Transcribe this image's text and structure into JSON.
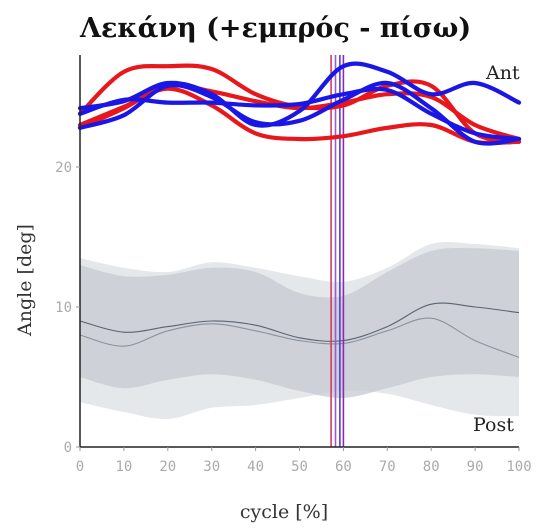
{
  "chart_data": {
    "type": "line",
    "title": "Λεκάνη (+εμπρός - πίσω)",
    "xlabel": "cycle [%]",
    "ylabel": "Angle [deg]",
    "xlim": [
      0,
      100
    ],
    "ylim": [
      0,
      28
    ],
    "x_ticks": [
      0,
      10,
      20,
      30,
      40,
      50,
      60,
      70,
      80,
      90,
      100
    ],
    "y_ticks": [
      0,
      10,
      20
    ],
    "x_tick_labels": [
      "0",
      "10",
      "20",
      "30",
      "40",
      "50",
      "60",
      "70",
      "80",
      "90",
      "100"
    ],
    "y_tick_labels": [
      "0",
      "10",
      "20"
    ],
    "annotations": {
      "top_right": "Ant",
      "bottom_right": "Post"
    },
    "x": [
      0,
      10,
      20,
      30,
      40,
      50,
      60,
      70,
      80,
      90,
      100
    ],
    "bands": [
      {
        "color": "#e2e5e8",
        "upper": [
          13.5,
          12.8,
          12.5,
          13.2,
          12.8,
          12.2,
          11.8,
          12.8,
          14.5,
          14.5,
          14.2
        ],
        "lower": [
          3.2,
          2.5,
          2.0,
          2.8,
          3.0,
          3.5,
          4.0,
          3.8,
          3.0,
          2.3,
          2.2
        ]
      },
      {
        "color": "#c5cad0",
        "upper": [
          13.0,
          12.2,
          12.3,
          12.8,
          12.5,
          11.0,
          10.8,
          12.5,
          14.0,
          14.2,
          14.0
        ],
        "lower": [
          5.0,
          4.2,
          4.8,
          5.2,
          4.8,
          4.0,
          3.5,
          4.2,
          5.0,
          5.2,
          5.0
        ]
      }
    ],
    "mean_lines": [
      {
        "color": "#5a6470",
        "values": [
          9.0,
          8.2,
          8.6,
          9.0,
          8.7,
          7.8,
          7.6,
          8.6,
          10.2,
          10.0,
          9.6
        ]
      },
      {
        "color": "#8a939c",
        "values": [
          8.0,
          7.2,
          8.3,
          8.8,
          8.3,
          7.6,
          7.4,
          8.3,
          9.2,
          7.6,
          6.4
        ]
      }
    ],
    "series": [
      {
        "color": "#e8171c",
        "values": [
          23.8,
          26.8,
          27.2,
          27.0,
          25.2,
          24.3,
          24.4,
          25.8,
          25.8,
          22.4,
          21.8
        ]
      },
      {
        "color": "#e8171c",
        "values": [
          23.0,
          24.3,
          25.6,
          24.4,
          22.4,
          22.0,
          22.2,
          22.8,
          23.0,
          21.8,
          21.8
        ]
      },
      {
        "color": "#e8171c",
        "values": [
          22.8,
          24.2,
          25.8,
          25.4,
          24.7,
          24.2,
          24.6,
          25.2,
          25.0,
          23.0,
          22.0
        ]
      },
      {
        "color": "#1a17e6",
        "values": [
          24.2,
          24.7,
          26.0,
          25.2,
          23.0,
          24.0,
          27.2,
          26.8,
          25.2,
          26.0,
          24.6
        ]
      },
      {
        "color": "#1a17e6",
        "values": [
          22.8,
          23.7,
          25.8,
          25.0,
          23.2,
          23.3,
          24.8,
          26.0,
          24.2,
          21.8,
          22.0
        ]
      },
      {
        "color": "#1a17e6",
        "values": [
          23.8,
          24.8,
          24.6,
          24.6,
          24.4,
          24.5,
          25.2,
          25.5,
          23.8,
          22.4,
          22.0
        ]
      }
    ],
    "events": [
      {
        "x": 57.2,
        "color": "#d04060"
      },
      {
        "x": 58.2,
        "color": "#9a5ad0"
      },
      {
        "x": 59.2,
        "color": "#5a3ad8"
      },
      {
        "x": 60.0,
        "color": "#8a2ab8"
      }
    ],
    "grid": false,
    "legend": "none"
  }
}
